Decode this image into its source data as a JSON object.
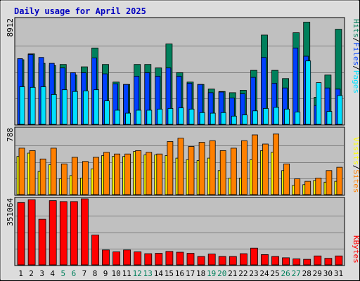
{
  "chart_data": {
    "type": "bar",
    "title": "Daily usage for April 2025",
    "colors": {
      "hits": "#00805c",
      "files": "#0040ff",
      "pages": "#00e0ff",
      "visits": "#ffff00",
      "sites": "#ff8000",
      "kbytes": "#ff0000",
      "title": "#0000c0",
      "weekend_label": "#00805c",
      "weekday_label": "#000000",
      "background": "#c0c0c0",
      "frame": "#dcdcdc"
    },
    "categories": [
      "1",
      "2",
      "3",
      "4",
      "5",
      "6",
      "7",
      "8",
      "9",
      "10",
      "11",
      "12",
      "13",
      "14",
      "15",
      "16",
      "17",
      "18",
      "19",
      "20",
      "21",
      "22",
      "23",
      "24",
      "25",
      "26",
      "27",
      "28",
      "29",
      "30",
      "31"
    ],
    "weekend_days": [
      "5",
      "6",
      "12",
      "13",
      "19",
      "20",
      "26",
      "27"
    ],
    "panels": [
      {
        "id": "hits",
        "max_label": "8912",
        "ymax": 8912,
        "legend": [
          {
            "label": "Hits",
            "color": "#00805c"
          },
          {
            "label": "/",
            "color": "#000000"
          },
          {
            "label": "Files",
            "color": "#0040ff"
          },
          {
            "label": "/",
            "color": "#000000"
          },
          {
            "label": "Pages",
            "color": "#00e0ff"
          }
        ],
        "series": [
          {
            "name": "Hits",
            "color": "#00805c",
            "values": [
              5500,
              6000,
              5200,
              5000,
              5100,
              4200,
              4900,
              6500,
              5100,
              3600,
              3400,
              5100,
              5100,
              4800,
              6850,
              4400,
              3600,
              3400,
              3000,
              2800,
              2700,
              2900,
              4600,
              7600,
              4600,
              3900,
              7800,
              8700,
              2300,
              4200,
              8100
            ]
          },
          {
            "name": "Files",
            "color": "#0040ff",
            "values": [
              5600,
              5950,
              5700,
              5200,
              4800,
              4400,
              4400,
              5650,
              4300,
              3450,
              3400,
              4100,
              4400,
              4100,
              4800,
              4100,
              3500,
              3400,
              2700,
              2750,
              2250,
              2600,
              4000,
              5700,
              3500,
              3100,
              6500,
              5800,
              1600,
              3100,
              3000
            ]
          },
          {
            "name": "Pages",
            "color": "#00e0ff",
            "values": [
              3200,
              3150,
              3200,
              2550,
              2950,
              2800,
              2850,
              2950,
              2000,
              1200,
              950,
              1200,
              1200,
              1300,
              1350,
              1400,
              1300,
              1000,
              950,
              1000,
              700,
              800,
              1150,
              1350,
              1450,
              1300,
              1050,
              5400,
              3550,
              1100,
              2450
            ]
          }
        ]
      },
      {
        "id": "visits",
        "max_label": "788",
        "ymax": 788,
        "legend": [
          {
            "label": "Visits",
            "color": "#ffff00"
          },
          {
            "label": "/",
            "color": "#000000"
          },
          {
            "label": "Sites",
            "color": "#ff8000"
          }
        ],
        "series": [
          {
            "name": "Visits",
            "color": "#ffff00",
            "values": [
              460,
              500,
              280,
              360,
              190,
              230,
              200,
              310,
              470,
              460,
              460,
              520,
              480,
              480,
              470,
              440,
              420,
              410,
              440,
              290,
              200,
              200,
              420,
              530,
              510,
              290,
              110,
              120,
              170,
              150,
              160
            ]
          },
          {
            "name": "Sites",
            "color": "#ff8000",
            "values": [
              560,
              530,
              430,
              560,
              370,
              450,
              400,
              450,
              510,
              490,
              490,
              530,
              510,
              490,
              640,
              680,
              580,
              630,
              650,
              530,
              560,
              650,
              720,
              610,
              730,
              370,
              190,
              160,
              200,
              290,
              330
            ]
          }
        ]
      },
      {
        "id": "kbytes",
        "max_label": "351064",
        "ymax": 351064,
        "legend": [
          {
            "label": "KBytes",
            "color": "#ff0000"
          }
        ],
        "series": [
          {
            "name": "KBytes",
            "color": "#ff0000",
            "values": [
              335000,
              350000,
              245000,
              345000,
              340000,
              340000,
              355000,
              160000,
              80000,
              70000,
              80000,
              70000,
              60000,
              62000,
              72000,
              68000,
              62000,
              45000,
              58000,
              45000,
              45000,
              60000,
              90000,
              55000,
              45000,
              38000,
              32000,
              30000,
              48000,
              35000,
              48000
            ]
          }
        ]
      }
    ]
  }
}
